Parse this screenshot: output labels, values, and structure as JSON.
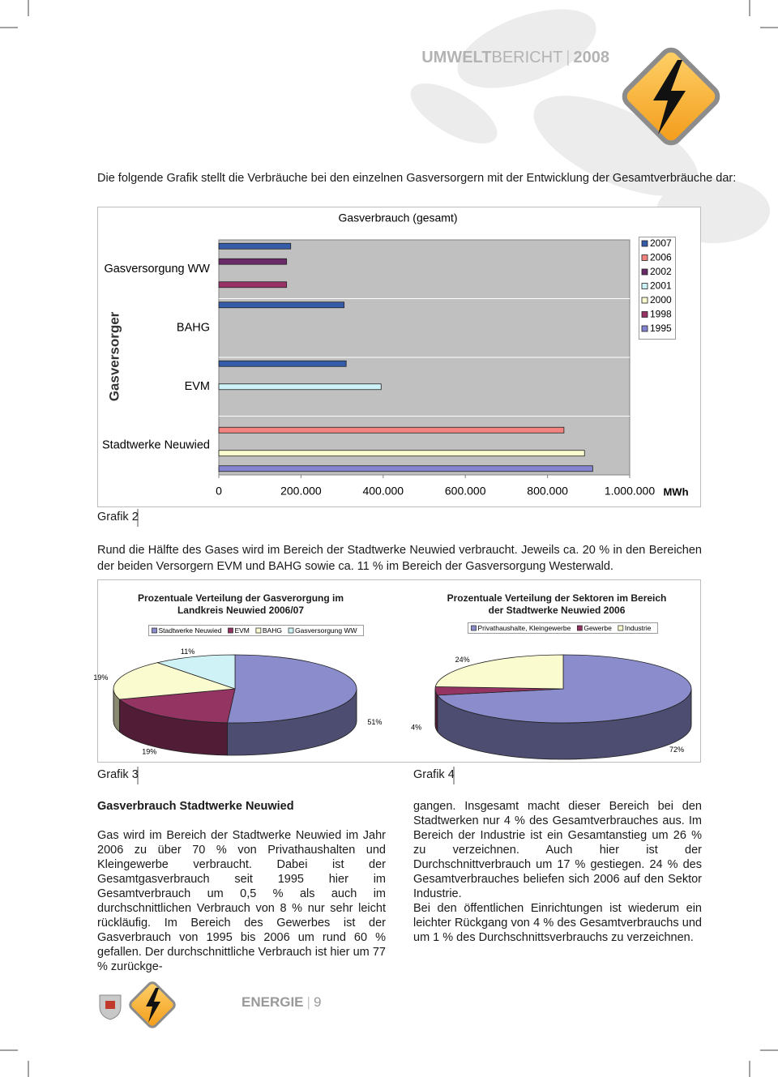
{
  "header": {
    "brand_bold": "UMWELT",
    "brand_light": "BERICHT",
    "year": 2008
  },
  "intro": "Die folgende Grafik stellt die Verbräuche bei den einzelnen Gasversorgern mit der Entwicklung der Gesamtverbräuche dar:",
  "chart_data": [
    {
      "type": "bar",
      "orientation": "horizontal",
      "title": "Gasverbrauch (gesamt)",
      "y_label": "Gasversorger",
      "x_unit": "MWh",
      "categories": [
        "Gasversorgung WW",
        "BAHG",
        "EVM",
        "Stadtwerke Neuwied"
      ],
      "series": [
        {
          "name": "2007",
          "color": "#355ca8",
          "values": [
            175000,
            305000,
            310000,
            null
          ]
        },
        {
          "name": "2006",
          "color": "#f2837f",
          "values": [
            null,
            null,
            null,
            840000
          ]
        },
        {
          "name": "2002",
          "color": "#6a2a6a",
          "values": [
            165000,
            null,
            null,
            null
          ]
        },
        {
          "name": "2001",
          "color": "#ccf2f8",
          "values": [
            null,
            null,
            395000,
            null
          ]
        },
        {
          "name": "2000",
          "color": "#fbfbd0",
          "values": [
            null,
            null,
            null,
            890000
          ]
        },
        {
          "name": "1998",
          "color": "#993366",
          "values": [
            165000,
            null,
            null,
            null
          ]
        },
        {
          "name": "1995",
          "color": "#8484d0",
          "values": [
            null,
            null,
            null,
            910000
          ]
        }
      ],
      "xlim": [
        0,
        1000000
      ],
      "xticks": [
        0,
        {
          "value": 200000,
          "label": "200.000"
        },
        {
          "value": 400000,
          "label": "400.000"
        },
        {
          "value": 600000,
          "label": "600.000"
        },
        {
          "value": 800000,
          "label": "800.000"
        },
        {
          "value": 1000000,
          "label": "1.000.000"
        }
      ],
      "legend": "right"
    },
    {
      "type": "pie",
      "style": "3d",
      "title": "Prozentuale Verteilung der Gasverorgung im Landkreis Neuwied 2006/07",
      "categories": [
        "Stadtwerke Neuwied",
        "EVM",
        "BAHG",
        "Gasversorgung WW"
      ],
      "values": [
        51,
        19,
        19,
        11
      ],
      "value_labels": [
        "51%",
        "19%",
        "19%",
        "11%"
      ],
      "colors": [
        "#8a8ccc",
        "#933462",
        "#fbfbd0",
        "#cff2f6"
      ],
      "legend": "top"
    },
    {
      "type": "pie",
      "style": "3d",
      "title": "Prozentuale Verteilung der Sektoren im Bereich der Stadtwerke Neuwied 2006",
      "categories": [
        "Privathaushalte, Kleingewerbe",
        "Gewerbe",
        "Industrie"
      ],
      "values": [
        72,
        4,
        24
      ],
      "value_labels": [
        "72%",
        "4%",
        "24%"
      ],
      "colors": [
        "#8a8ccc",
        "#933462",
        "#fbfbd0"
      ],
      "legend": "top"
    }
  ],
  "captions": [
    "Grafik 2",
    "Grafik 3",
    "Grafik 4"
  ],
  "summary": "Rund die Hälfte des Gases wird im Bereich der Stadtwerke Neuwied verbraucht. Jeweils ca. 20 % in den Bereichen der beiden Versorgern EVM und BAHG sowie ca. 11 % im Bereich der Gasversorgung Westerwald.",
  "section": {
    "heading": "Gasverbrauch Stadtwerke Neuwied",
    "left_text": "Gas wird im Bereich der Stadtwerke Neuwied im Jahr 2006 zu über 70 % von Privathaushalten und Kleingewerbe verbraucht. Dabei ist der Gesamtgasverbrauch seit 1995 hier im Gesamtverbrauch um 0,5 % als auch im durchschnittlichen Verbrauch von 8 % nur sehr leicht rückläufig. Im Bereich des Gewerbes ist der Gasverbrauch von 1995 bis 2006 um rund 60 % gefallen. Der durchschnittliche Verbrauch ist hier um 77 % zurückge-",
    "right_texts": [
      "gangen. Insgesamt macht dieser Bereich bei den Stadtwerken nur 4 % des Gesamtverbrauches aus. Im Bereich der Industrie ist ein Gesamtanstieg um 26 % zu verzeichnen. Auch hier ist der Durchschnittverbrauch um 17 % gestiegen. 24 % des Gesamtverbrauches beliefen sich 2006 auf den Sektor Industrie.",
      "Bei den öffentlichen Einrichtungen ist wiederum ein leichter Rückgang von 4 % des Gesamtverbrauchs und um 1 % des Durchschnittsverbrauchs zu verzeichnen."
    ]
  },
  "footer": {
    "section": "ENERGIE",
    "page": 9
  }
}
